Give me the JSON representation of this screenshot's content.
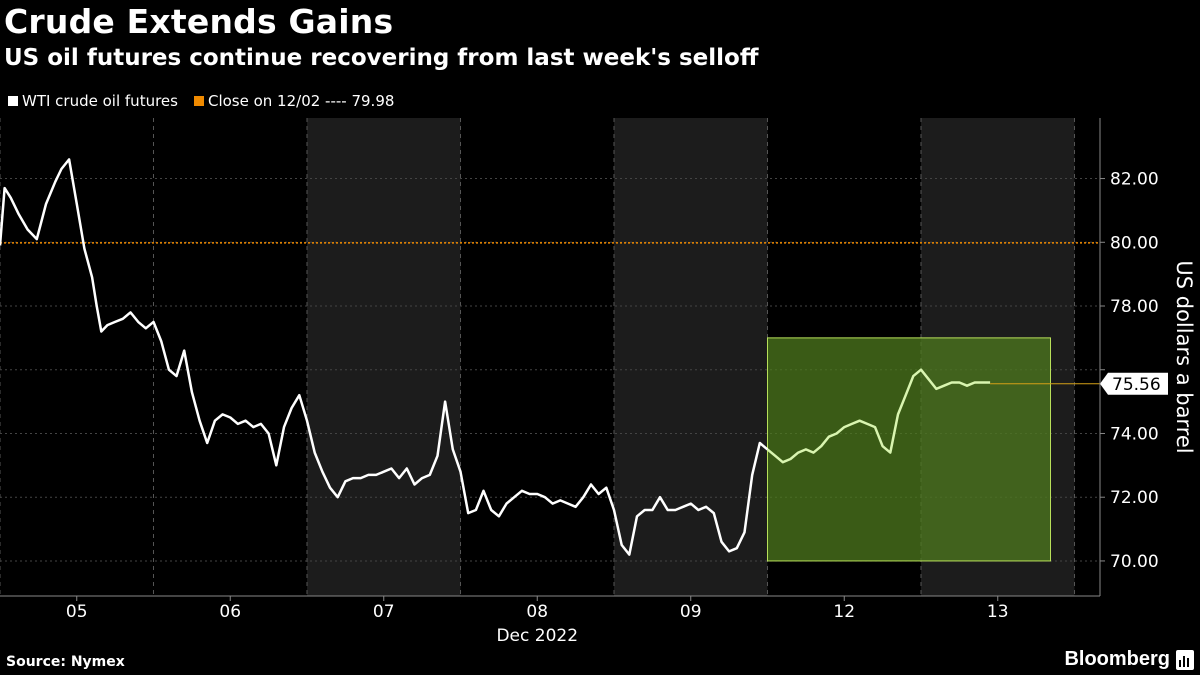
{
  "title": "Crude Extends Gains",
  "subtitle": "US oil futures continue recovering from last week's selloff",
  "legend": {
    "series_label": "WTI crude oil futures",
    "series_color": "#ffffff",
    "reference_label": "Close on 12/02 ---- 79.98",
    "reference_color": "#f08a00"
  },
  "footer": {
    "source": "Source: Nymex",
    "brand": "Bloomberg"
  },
  "chart_data": {
    "type": "line",
    "title": "Crude Extends Gains",
    "subtitle": "US oil futures continue recovering from last week's selloff",
    "xlabel": "Dec 2022",
    "ylabel": "US dollars a barrel",
    "ylim": [
      68.9,
      83.9
    ],
    "y_ticks": [
      70,
      72,
      74,
      76,
      78,
      80,
      82
    ],
    "y_tick_labels": [
      "70.00",
      "72.00",
      "74.00",
      "76.00",
      "78.00",
      "80.00",
      "82.00"
    ],
    "x_categories": [
      "05",
      "06",
      "07",
      "08",
      "09",
      "12",
      "13"
    ],
    "x_period_label": "Dec 2022",
    "grid": true,
    "shaded_days": [
      "06",
      "08",
      "12"
    ],
    "reference_line": {
      "label": "Close on 12/02",
      "value": 79.98,
      "color": "#f08a00"
    },
    "last_value": {
      "value": 75.56,
      "label": "75.56"
    },
    "highlight_box": {
      "start": "12",
      "end": "13",
      "y_range": [
        70,
        77
      ],
      "color": "#4d7a1e"
    },
    "series": [
      {
        "name": "WTI crude oil futures",
        "color": "#ffffff",
        "highlight_color": "#d9f5b0",
        "x": [
          0,
          0.03,
          0.07,
          0.12,
          0.18,
          0.24,
          0.3,
          0.36,
          0.4,
          0.45,
          0.5,
          0.55,
          0.6,
          0.63,
          0.66,
          0.7,
          0.75,
          0.8,
          0.85,
          0.9,
          0.95,
          1.0,
          1.05,
          1.1,
          1.15,
          1.2,
          1.25,
          1.3,
          1.35,
          1.4,
          1.45,
          1.5,
          1.55,
          1.6,
          1.65,
          1.7,
          1.75,
          1.8,
          1.85,
          1.9,
          1.95,
          2.0,
          2.05,
          2.1,
          2.15,
          2.2,
          2.25,
          2.3,
          2.35,
          2.4,
          2.45,
          2.5,
          2.55,
          2.6,
          2.65,
          2.7,
          2.75,
          2.8,
          2.85,
          2.9,
          2.95,
          3.0,
          3.05,
          3.1,
          3.15,
          3.2,
          3.25,
          3.3,
          3.35,
          3.4,
          3.45,
          3.5,
          3.55,
          3.6,
          3.65,
          3.7,
          3.75,
          3.8,
          3.85,
          3.9,
          3.95,
          4.0,
          4.05,
          4.1,
          4.15,
          4.2,
          4.25,
          4.3,
          4.35,
          4.4,
          4.45,
          4.5,
          4.55,
          4.6,
          4.65,
          4.7,
          4.75,
          4.8,
          4.85,
          4.9,
          4.95,
          5.0,
          5.05,
          5.1,
          5.15,
          5.2,
          5.25,
          5.3,
          5.35,
          5.4,
          5.45,
          5.5,
          5.55,
          5.6,
          5.65,
          5.7,
          5.75,
          5.8,
          5.85,
          5.9,
          5.95,
          6.0,
          6.05,
          6.1,
          6.15,
          6.2,
          6.25,
          6.3,
          6.35,
          6.4,
          6.45
        ],
        "values": [
          79.9,
          81.7,
          81.4,
          80.9,
          80.4,
          80.1,
          81.2,
          81.9,
          82.3,
          82.6,
          81.2,
          79.8,
          78.9,
          78.0,
          77.2,
          77.4,
          77.5,
          77.6,
          77.8,
          77.5,
          77.3,
          77.5,
          76.9,
          76.0,
          75.8,
          76.6,
          75.3,
          74.4,
          73.7,
          74.4,
          74.6,
          74.5,
          74.3,
          74.4,
          74.2,
          74.3,
          74.0,
          73.0,
          74.2,
          74.8,
          75.2,
          74.4,
          73.4,
          72.8,
          72.3,
          72.0,
          72.5,
          72.6,
          72.6,
          72.7,
          72.7,
          72.8,
          72.9,
          72.6,
          72.9,
          72.4,
          72.6,
          72.7,
          73.3,
          75.0,
          73.5,
          72.8,
          71.5,
          71.6,
          72.2,
          71.6,
          71.4,
          71.8,
          72.0,
          72.2,
          72.1,
          72.1,
          72.0,
          71.8,
          71.9,
          71.8,
          71.7,
          72.0,
          72.4,
          72.1,
          72.3,
          71.6,
          70.5,
          70.2,
          71.4,
          71.6,
          71.6,
          72.0,
          71.6,
          71.6,
          71.7,
          71.8,
          71.6,
          71.7,
          71.5,
          70.6,
          70.3,
          70.4,
          70.9,
          72.7,
          73.7,
          73.5,
          73.3,
          73.1,
          73.2,
          73.4,
          73.5,
          73.4,
          73.6,
          73.9,
          74.0,
          74.2,
          74.3,
          74.4,
          74.3,
          74.2,
          73.6,
          73.4,
          74.6,
          75.2,
          75.8,
          76.0,
          75.7,
          75.4,
          75.5,
          75.6,
          75.6,
          75.5,
          75.6,
          75.6,
          75.6
        ]
      }
    ]
  }
}
